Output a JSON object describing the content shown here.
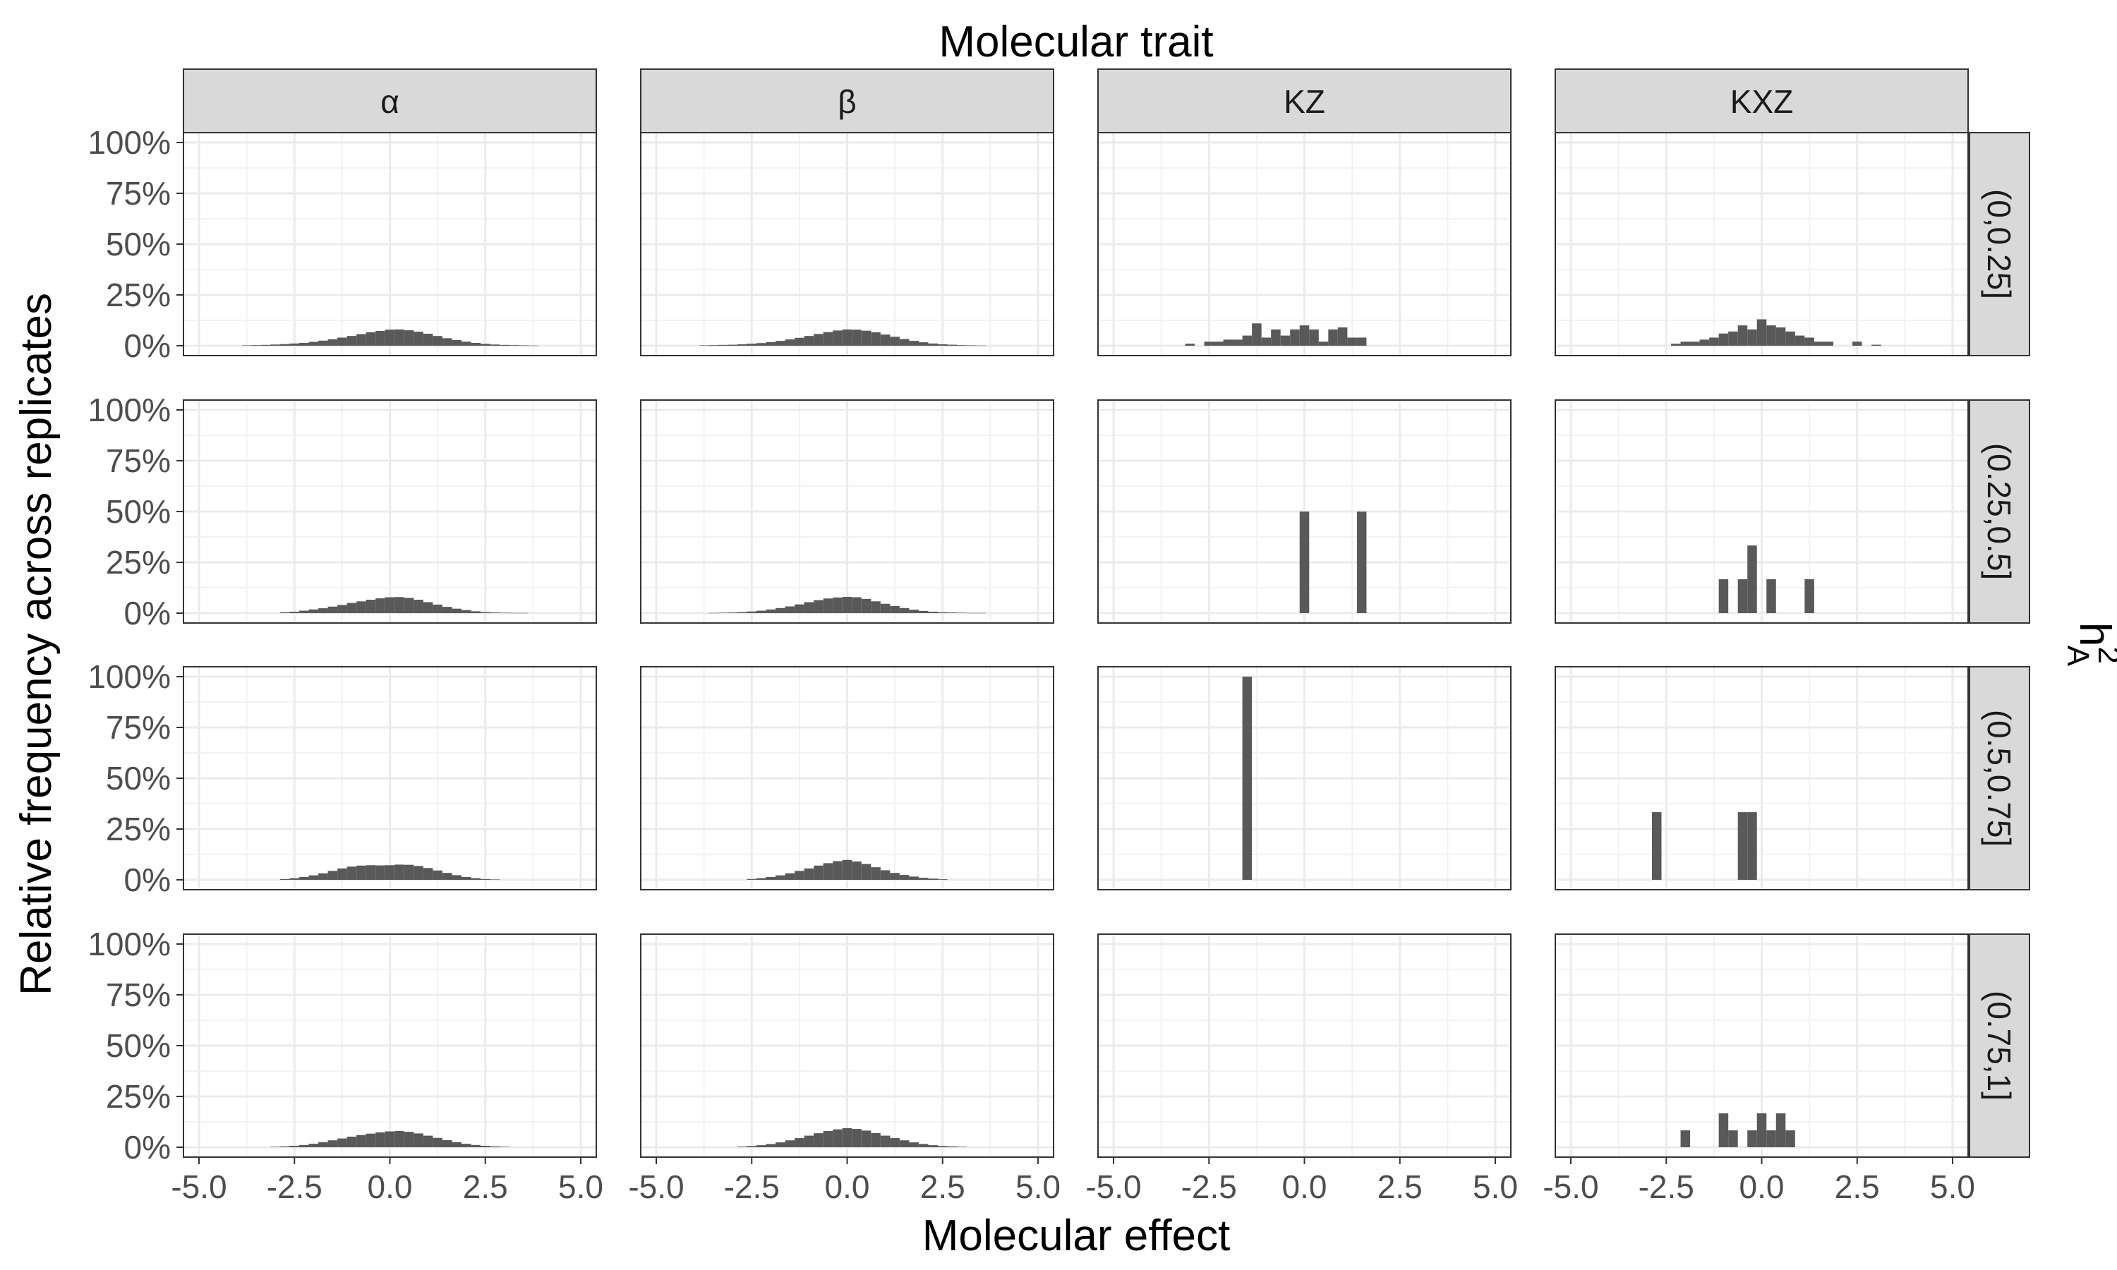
{
  "chart_data": {
    "type": "bar",
    "title": "Molecular trait",
    "xlabel": "Molecular effect",
    "ylabel": "Relative frequency across replicates",
    "row_facet_label": "h",
    "row_facet_label_sup": "2",
    "row_facet_label_sub": "A",
    "columns": [
      "α",
      "β",
      "KZ",
      "KXZ"
    ],
    "rows": [
      "(0,0.25]",
      "(0.25,0.5]",
      "(0.5,0.75]",
      "(0.75,1]"
    ],
    "xlim": [
      -5,
      5
    ],
    "ylim": [
      0,
      1
    ],
    "x_ticks": [
      -5,
      -2.5,
      0,
      2.5,
      5
    ],
    "x_tick_labels": [
      "-5.0",
      "-2.5",
      "0.0",
      "2.5",
      "5.0"
    ],
    "y_ticks": [
      0,
      0.25,
      0.5,
      0.75,
      1
    ],
    "y_tick_labels": [
      "0%",
      "25%",
      "50%",
      "75%",
      "100%"
    ],
    "bin_width": 0.25,
    "grid": true,
    "bar_color": "#595959",
    "panels": [
      {
        "column": "α",
        "row": "(0,0.25]",
        "bins": [
          [
            -3.75,
            0.002
          ],
          [
            -3.5,
            0.003
          ],
          [
            -3.25,
            0.004
          ],
          [
            -3,
            0.006
          ],
          [
            -2.75,
            0.008
          ],
          [
            -2.5,
            0.011
          ],
          [
            -2.25,
            0.014
          ],
          [
            -2,
            0.019
          ],
          [
            -1.75,
            0.025
          ],
          [
            -1.5,
            0.032
          ],
          [
            -1.25,
            0.04
          ],
          [
            -1,
            0.048
          ],
          [
            -0.75,
            0.057
          ],
          [
            -0.5,
            0.066
          ],
          [
            -0.25,
            0.073
          ],
          [
            0,
            0.079
          ],
          [
            0.25,
            0.08
          ],
          [
            0.5,
            0.076
          ],
          [
            0.75,
            0.069
          ],
          [
            1,
            0.059
          ],
          [
            1.25,
            0.048
          ],
          [
            1.5,
            0.037
          ],
          [
            1.75,
            0.028
          ],
          [
            2,
            0.02
          ],
          [
            2.25,
            0.014
          ],
          [
            2.5,
            0.009
          ],
          [
            2.75,
            0.006
          ],
          [
            3,
            0.004
          ],
          [
            3.25,
            0.003
          ],
          [
            3.5,
            0.002
          ],
          [
            3.75,
            0.001
          ]
        ]
      },
      {
        "column": "β",
        "row": "(0,0.25]",
        "bins": [
          [
            -3.75,
            0.002
          ],
          [
            -3.5,
            0.003
          ],
          [
            -3.25,
            0.004
          ],
          [
            -3,
            0.005
          ],
          [
            -2.75,
            0.007
          ],
          [
            -2.5,
            0.01
          ],
          [
            -2.25,
            0.013
          ],
          [
            -2,
            0.018
          ],
          [
            -1.75,
            0.024
          ],
          [
            -1.5,
            0.031
          ],
          [
            -1.25,
            0.039
          ],
          [
            -1,
            0.048
          ],
          [
            -0.75,
            0.058
          ],
          [
            -0.5,
            0.067
          ],
          [
            -0.25,
            0.075
          ],
          [
            0,
            0.08
          ],
          [
            0.25,
            0.079
          ],
          [
            0.5,
            0.074
          ],
          [
            0.75,
            0.066
          ],
          [
            1,
            0.055
          ],
          [
            1.25,
            0.044
          ],
          [
            1.5,
            0.033
          ],
          [
            1.75,
            0.024
          ],
          [
            2,
            0.017
          ],
          [
            2.25,
            0.011
          ],
          [
            2.5,
            0.007
          ],
          [
            2.75,
            0.005
          ],
          [
            3,
            0.003
          ],
          [
            3.25,
            0.002
          ],
          [
            3.5,
            0.001
          ]
        ]
      },
      {
        "column": "KZ",
        "row": "(0,0.25]",
        "bins": [
          [
            -3,
            0.01
          ],
          [
            -2.5,
            0.02
          ],
          [
            -2.25,
            0.02
          ],
          [
            -2,
            0.03
          ],
          [
            -1.75,
            0.03
          ],
          [
            -1.5,
            0.05
          ],
          [
            -1.25,
            0.11
          ],
          [
            -1,
            0.04
          ],
          [
            -0.75,
            0.08
          ],
          [
            -0.5,
            0.05
          ],
          [
            -0.25,
            0.08
          ],
          [
            0,
            0.1
          ],
          [
            0.25,
            0.08
          ],
          [
            0.5,
            0.02
          ],
          [
            0.75,
            0.08
          ],
          [
            1,
            0.09
          ],
          [
            1.25,
            0.04
          ],
          [
            1.5,
            0.04
          ]
        ]
      },
      {
        "column": "KXZ",
        "row": "(0,0.25]",
        "bins": [
          [
            -2.25,
            0.01
          ],
          [
            -2,
            0.02
          ],
          [
            -1.75,
            0.02
          ],
          [
            -1.5,
            0.03
          ],
          [
            -1.25,
            0.04
          ],
          [
            -1,
            0.06
          ],
          [
            -0.75,
            0.07
          ],
          [
            -0.5,
            0.1
          ],
          [
            -0.25,
            0.08
          ],
          [
            0,
            0.13
          ],
          [
            0.25,
            0.1
          ],
          [
            0.5,
            0.09
          ],
          [
            0.75,
            0.07
          ],
          [
            1,
            0.05
          ],
          [
            1.25,
            0.04
          ],
          [
            1.5,
            0.02
          ],
          [
            1.75,
            0.02
          ],
          [
            2.5,
            0.02
          ],
          [
            3,
            0.005
          ]
        ]
      },
      {
        "column": "α",
        "row": "(0.25,0.5]",
        "bins": [
          [
            -2.75,
            0.004
          ],
          [
            -2.5,
            0.007
          ],
          [
            -2.25,
            0.012
          ],
          [
            -2,
            0.018
          ],
          [
            -1.75,
            0.024
          ],
          [
            -1.5,
            0.032
          ],
          [
            -1.25,
            0.04
          ],
          [
            -1,
            0.05
          ],
          [
            -0.75,
            0.058
          ],
          [
            -0.5,
            0.066
          ],
          [
            -0.25,
            0.073
          ],
          [
            0,
            0.078
          ],
          [
            0.25,
            0.079
          ],
          [
            0.5,
            0.075
          ],
          [
            0.75,
            0.066
          ],
          [
            1,
            0.054
          ],
          [
            1.25,
            0.042
          ],
          [
            1.5,
            0.031
          ],
          [
            1.75,
            0.022
          ],
          [
            2,
            0.015
          ],
          [
            2.25,
            0.009
          ],
          [
            2.5,
            0.005
          ],
          [
            2.75,
            0.003
          ],
          [
            3,
            0.002
          ],
          [
            3.25,
            0.001
          ],
          [
            3.5,
            0.001
          ]
        ]
      },
      {
        "column": "β",
        "row": "(0.25,0.5]",
        "bins": [
          [
            -3.5,
            0.001
          ],
          [
            -3.25,
            0.002
          ],
          [
            -3,
            0.003
          ],
          [
            -2.75,
            0.005
          ],
          [
            -2.5,
            0.008
          ],
          [
            -2.25,
            0.012
          ],
          [
            -2,
            0.018
          ],
          [
            -1.75,
            0.025
          ],
          [
            -1.5,
            0.033
          ],
          [
            -1.25,
            0.043
          ],
          [
            -1,
            0.054
          ],
          [
            -0.75,
            0.064
          ],
          [
            -0.5,
            0.072
          ],
          [
            -0.25,
            0.077
          ],
          [
            0,
            0.08
          ],
          [
            0.25,
            0.078
          ],
          [
            0.5,
            0.07
          ],
          [
            0.75,
            0.058
          ],
          [
            1,
            0.046
          ],
          [
            1.25,
            0.035
          ],
          [
            1.5,
            0.025
          ],
          [
            1.75,
            0.017
          ],
          [
            2,
            0.011
          ],
          [
            2.25,
            0.007
          ],
          [
            2.5,
            0.004
          ],
          [
            2.75,
            0.003
          ],
          [
            3,
            0.002
          ],
          [
            3.25,
            0.001
          ],
          [
            3.5,
            0.001
          ]
        ]
      },
      {
        "column": "KZ",
        "row": "(0.25,0.5]",
        "bins": [
          [
            0,
            0.5
          ],
          [
            1.5,
            0.5
          ]
        ]
      },
      {
        "column": "KXZ",
        "row": "(0.25,0.5]",
        "bins": [
          [
            -1,
            0.167
          ],
          [
            -0.5,
            0.167
          ],
          [
            -0.25,
            0.333
          ],
          [
            0.25,
            0.167
          ],
          [
            1.25,
            0.167
          ]
        ]
      },
      {
        "column": "α",
        "row": "(0.5,0.75]",
        "bins": [
          [
            -2.75,
            0.004
          ],
          [
            -2.5,
            0.008
          ],
          [
            -2.25,
            0.014
          ],
          [
            -2,
            0.022
          ],
          [
            -1.75,
            0.032
          ],
          [
            -1.5,
            0.044
          ],
          [
            -1.25,
            0.056
          ],
          [
            -1,
            0.065
          ],
          [
            -0.75,
            0.07
          ],
          [
            -0.5,
            0.072
          ],
          [
            -0.25,
            0.071
          ],
          [
            0,
            0.072
          ],
          [
            0.25,
            0.075
          ],
          [
            0.5,
            0.074
          ],
          [
            0.75,
            0.068
          ],
          [
            1,
            0.058
          ],
          [
            1.25,
            0.046
          ],
          [
            1.5,
            0.034
          ],
          [
            1.75,
            0.023
          ],
          [
            2,
            0.014
          ],
          [
            2.25,
            0.008
          ],
          [
            2.5,
            0.004
          ],
          [
            2.75,
            0.002
          ]
        ]
      },
      {
        "column": "β",
        "row": "(0.5,0.75]",
        "bins": [
          [
            -2.5,
            0.004
          ],
          [
            -2.25,
            0.008
          ],
          [
            -2,
            0.014
          ],
          [
            -1.75,
            0.022
          ],
          [
            -1.5,
            0.032
          ],
          [
            -1.25,
            0.044
          ],
          [
            -1,
            0.056
          ],
          [
            -0.75,
            0.07
          ],
          [
            -0.5,
            0.082
          ],
          [
            -0.25,
            0.092
          ],
          [
            0,
            0.098
          ],
          [
            0.25,
            0.09
          ],
          [
            0.5,
            0.078
          ],
          [
            0.75,
            0.062
          ],
          [
            1,
            0.047
          ],
          [
            1.25,
            0.034
          ],
          [
            1.5,
            0.024
          ],
          [
            1.75,
            0.016
          ],
          [
            2,
            0.01
          ],
          [
            2.25,
            0.006
          ],
          [
            2.5,
            0.003
          ]
        ]
      },
      {
        "column": "KZ",
        "row": "(0.5,0.75]",
        "bins": [
          [
            -1.5,
            1.0
          ]
        ]
      },
      {
        "column": "KXZ",
        "row": "(0.5,0.75]",
        "bins": [
          [
            -2.75,
            0.333
          ],
          [
            -0.5,
            0.333
          ],
          [
            -0.25,
            0.333
          ]
        ]
      },
      {
        "column": "α",
        "row": "(0.75,1]",
        "bins": [
          [
            -3,
            0.002
          ],
          [
            -2.75,
            0.004
          ],
          [
            -2.5,
            0.007
          ],
          [
            -2.25,
            0.011
          ],
          [
            -2,
            0.017
          ],
          [
            -1.75,
            0.025
          ],
          [
            -1.5,
            0.034
          ],
          [
            -1.25,
            0.043
          ],
          [
            -1,
            0.052
          ],
          [
            -0.75,
            0.06
          ],
          [
            -0.5,
            0.067
          ],
          [
            -0.25,
            0.073
          ],
          [
            0,
            0.078
          ],
          [
            0.25,
            0.08
          ],
          [
            0.5,
            0.076
          ],
          [
            0.75,
            0.068
          ],
          [
            1,
            0.057
          ],
          [
            1.25,
            0.046
          ],
          [
            1.5,
            0.035
          ],
          [
            1.75,
            0.025
          ],
          [
            2,
            0.017
          ],
          [
            2.25,
            0.011
          ],
          [
            2.5,
            0.007
          ],
          [
            2.75,
            0.004
          ],
          [
            3,
            0.002
          ]
        ]
      },
      {
        "column": "β",
        "row": "(0.75,1]",
        "bins": [
          [
            -2.75,
            0.003
          ],
          [
            -2.5,
            0.006
          ],
          [
            -2.25,
            0.01
          ],
          [
            -2,
            0.016
          ],
          [
            -1.75,
            0.024
          ],
          [
            -1.5,
            0.034
          ],
          [
            -1.25,
            0.045
          ],
          [
            -1,
            0.057
          ],
          [
            -0.75,
            0.069
          ],
          [
            -0.5,
            0.08
          ],
          [
            -0.25,
            0.088
          ],
          [
            0,
            0.094
          ],
          [
            0.25,
            0.09
          ],
          [
            0.5,
            0.082
          ],
          [
            0.75,
            0.07
          ],
          [
            1,
            0.057
          ],
          [
            1.25,
            0.045
          ],
          [
            1.5,
            0.034
          ],
          [
            1.75,
            0.024
          ],
          [
            2,
            0.016
          ],
          [
            2.25,
            0.01
          ],
          [
            2.5,
            0.006
          ],
          [
            2.75,
            0.004
          ],
          [
            3,
            0.002
          ]
        ]
      },
      {
        "column": "KZ",
        "row": "(0.75,1]",
        "bins": []
      },
      {
        "column": "KXZ",
        "row": "(0.75,1]",
        "bins": [
          [
            -2,
            0.083
          ],
          [
            -1,
            0.167
          ],
          [
            -0.75,
            0.083
          ],
          [
            -0.25,
            0.083
          ],
          [
            0,
            0.167
          ],
          [
            0.25,
            0.083
          ],
          [
            0.5,
            0.167
          ],
          [
            0.75,
            0.083
          ]
        ]
      }
    ]
  }
}
